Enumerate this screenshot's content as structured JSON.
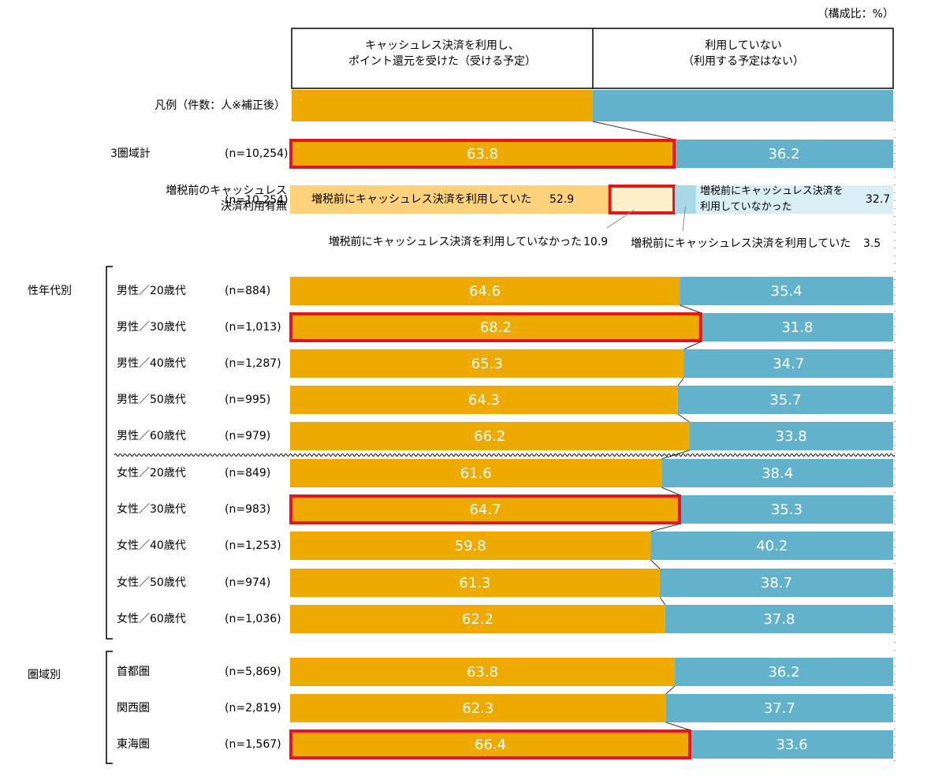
{
  "chart_data": {
    "type": "stacked-bar-horizontal",
    "unit_note": "（構成比：%）",
    "legend_title": "凡例（件数：人※補正後）",
    "xlim": [
      0,
      100
    ],
    "series": [
      {
        "name": "キャッシュレス決済を利用し、\nポイント還元を受けた（受ける予定）",
        "color": "#eeaa00"
      },
      {
        "name": "利用していない\n（利用する予定はない）",
        "color": "#62b2cc"
      }
    ],
    "highlight_color": "#e8141c",
    "rows": [
      {
        "label": "3圏域計",
        "n": "(n=10,254)",
        "values": [
          63.8,
          36.2
        ],
        "highlight": true
      },
      {
        "label": "男性／20歳代",
        "n": "(n=884)",
        "values": [
          64.6,
          35.4
        ],
        "highlight": false
      },
      {
        "label": "男性／30歳代",
        "n": "(n=1,013)",
        "values": [
          68.2,
          31.8
        ],
        "highlight": true
      },
      {
        "label": "男性／40歳代",
        "n": "(n=1,287)",
        "values": [
          65.3,
          34.7
        ],
        "highlight": false
      },
      {
        "label": "男性／50歳代",
        "n": "(n=995)",
        "values": [
          64.3,
          35.7
        ],
        "highlight": false
      },
      {
        "label": "男性／60歳代",
        "n": "(n=979)",
        "values": [
          66.2,
          33.8
        ],
        "highlight": false
      },
      {
        "label": "女性／20歳代",
        "n": "(n=849)",
        "values": [
          61.6,
          38.4
        ],
        "highlight": false
      },
      {
        "label": "女性／30歳代",
        "n": "(n=983)",
        "values": [
          64.7,
          35.3
        ],
        "highlight": true
      },
      {
        "label": "女性／40歳代",
        "n": "(n=1,253)",
        "values": [
          59.8,
          40.2
        ],
        "highlight": false
      },
      {
        "label": "女性／50歳代",
        "n": "(n=974)",
        "values": [
          61.3,
          38.7
        ],
        "highlight": false
      },
      {
        "label": "女性／60歳代",
        "n": "(n=1,036)",
        "values": [
          62.2,
          37.8
        ],
        "highlight": false
      },
      {
        "label": "首都圏",
        "n": "(n=5,869)",
        "values": [
          63.8,
          36.2
        ],
        "highlight": false
      },
      {
        "label": "関西圏",
        "n": "(n=2,819)",
        "values": [
          62.3,
          37.7
        ],
        "highlight": false
      },
      {
        "label": "東海圏",
        "n": "(n=1,567)",
        "values": [
          66.4,
          33.6
        ],
        "highlight": true
      }
    ],
    "groups": [
      "性年代別",
      "圏域別"
    ],
    "breakdown": {
      "label": "増税前のキャッシュレス\n決済利用有無",
      "n": "(n=10,254)",
      "segments": [
        {
          "name": "増税前にキャッシュレス決済を利用していた",
          "value": 52.9,
          "color": "#fdd27a",
          "highlight": false
        },
        {
          "name": "増税前にキャッシュレス決済を利用していなかった",
          "value": 10.9,
          "color": "#fff0cc",
          "highlight": true
        },
        {
          "name": "増税前にキャッシュレス決済を利用していた",
          "value": 3.5,
          "color": "#a9d8e6",
          "highlight": false
        },
        {
          "name": "増税前にキャッシュレス決済を\n利用していなかった",
          "value": 32.7,
          "color": "#daeef5",
          "highlight": false
        }
      ]
    }
  }
}
